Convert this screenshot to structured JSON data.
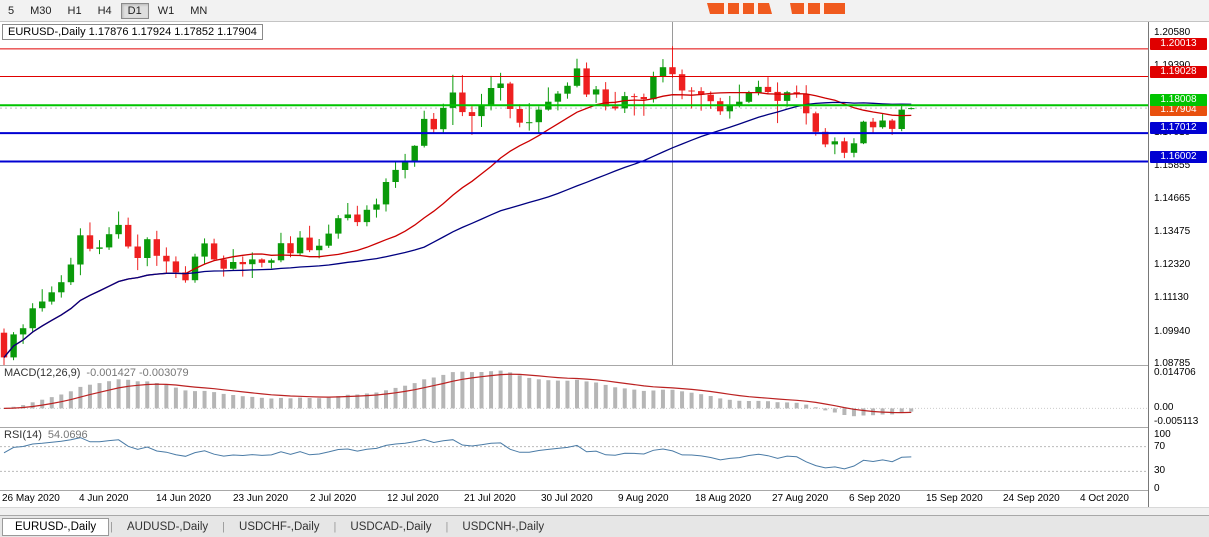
{
  "toolbar": {
    "timeframes": [
      {
        "label": "5",
        "active": false
      },
      {
        "label": "M30",
        "active": false
      },
      {
        "label": "H1",
        "active": false
      },
      {
        "label": "H4",
        "active": false
      },
      {
        "label": "D1",
        "active": true
      },
      {
        "label": "W1",
        "active": false
      },
      {
        "label": "MN",
        "active": false
      }
    ],
    "logo_color": "#f05a1e"
  },
  "chart": {
    "title_text": "EURUSD-,Daily 1.17876 1.17924 1.17852 1.17904"
  },
  "chart_data": {
    "type": "candlestick",
    "symbol": "EURUSD-",
    "timeframe": "Daily",
    "last": {
      "open": 1.17876,
      "high": 1.17924,
      "low": 1.17852,
      "close": 1.17904
    },
    "colors": {
      "up": "#0a9a0a",
      "down": "#ee2020"
    },
    "ohlc": [
      [
        1.099,
        1.1005,
        1.087,
        1.0902
      ],
      [
        1.0902,
        1.0992,
        1.0892,
        1.0984
      ],
      [
        1.0984,
        1.102,
        1.095,
        1.1006
      ],
      [
        1.1006,
        1.1095,
        1.099,
        1.1077
      ],
      [
        1.1077,
        1.1145,
        1.1065,
        1.1101
      ],
      [
        1.1101,
        1.1155,
        1.109,
        1.1134
      ],
      [
        1.1134,
        1.1195,
        1.1115,
        1.117
      ],
      [
        1.117,
        1.1257,
        1.116,
        1.1233
      ],
      [
        1.1233,
        1.1362,
        1.1195,
        1.1337
      ],
      [
        1.1337,
        1.1383,
        1.128,
        1.1289
      ],
      [
        1.1289,
        1.132,
        1.127,
        1.1294
      ],
      [
        1.1294,
        1.1366,
        1.1285,
        1.1341
      ],
      [
        1.1341,
        1.1422,
        1.1325,
        1.1374
      ],
      [
        1.1374,
        1.14,
        1.129,
        1.1297
      ],
      [
        1.1297,
        1.134,
        1.1213,
        1.1256
      ],
      [
        1.1256,
        1.133,
        1.1227,
        1.1323
      ],
      [
        1.1323,
        1.1353,
        1.1228,
        1.1264
      ],
      [
        1.1264,
        1.1294,
        1.1204,
        1.1244
      ],
      [
        1.1244,
        1.1262,
        1.1185,
        1.1205
      ],
      [
        1.1205,
        1.1227,
        1.1168,
        1.1177
      ],
      [
        1.1177,
        1.1271,
        1.1168,
        1.1261
      ],
      [
        1.1261,
        1.1326,
        1.1233,
        1.1308
      ],
      [
        1.1308,
        1.1325,
        1.1248,
        1.1251
      ],
      [
        1.1251,
        1.1265,
        1.119,
        1.1218
      ],
      [
        1.1218,
        1.1288,
        1.1212,
        1.1242
      ],
      [
        1.1242,
        1.1262,
        1.119,
        1.1234
      ],
      [
        1.1234,
        1.1276,
        1.1185,
        1.1251
      ],
      [
        1.1251,
        1.1255,
        1.1223,
        1.1239
      ],
      [
        1.1239,
        1.1254,
        1.1219,
        1.1248
      ],
      [
        1.1248,
        1.1346,
        1.1241,
        1.1309
      ],
      [
        1.1309,
        1.1334,
        1.1259,
        1.1273
      ],
      [
        1.1273,
        1.1352,
        1.1266,
        1.1329
      ],
      [
        1.1329,
        1.1371,
        1.1277,
        1.1284
      ],
      [
        1.1284,
        1.1324,
        1.1255,
        1.13
      ],
      [
        1.13,
        1.1375,
        1.1292,
        1.1343
      ],
      [
        1.1343,
        1.1409,
        1.1325,
        1.1398
      ],
      [
        1.1398,
        1.1452,
        1.139,
        1.1411
      ],
      [
        1.1411,
        1.1442,
        1.137,
        1.1384
      ],
      [
        1.1384,
        1.1444,
        1.1369,
        1.1428
      ],
      [
        1.1428,
        1.1468,
        1.14,
        1.1447
      ],
      [
        1.1447,
        1.154,
        1.1422,
        1.1527
      ],
      [
        1.1527,
        1.1601,
        1.1506,
        1.157
      ],
      [
        1.157,
        1.1627,
        1.154,
        1.1598
      ],
      [
        1.1598,
        1.1658,
        1.1581,
        1.1656
      ],
      [
        1.1656,
        1.1781,
        1.165,
        1.1752
      ],
      [
        1.1752,
        1.1773,
        1.17,
        1.1715
      ],
      [
        1.1715,
        1.1806,
        1.1701,
        1.1791
      ],
      [
        1.1791,
        1.1909,
        1.173,
        1.1846
      ],
      [
        1.1846,
        1.1908,
        1.1762,
        1.1776
      ],
      [
        1.1776,
        1.1797,
        1.1695,
        1.1762
      ],
      [
        1.1762,
        1.1841,
        1.1723,
        1.1803
      ],
      [
        1.1803,
        1.1905,
        1.1782,
        1.1862
      ],
      [
        1.1862,
        1.1916,
        1.1817,
        1.1878
      ],
      [
        1.1878,
        1.1884,
        1.1754,
        1.1787
      ],
      [
        1.1787,
        1.1804,
        1.1722,
        1.1738
      ],
      [
        1.1738,
        1.1808,
        1.171,
        1.174
      ],
      [
        1.174,
        1.1796,
        1.1701,
        1.1785
      ],
      [
        1.1785,
        1.1864,
        1.1781,
        1.1813
      ],
      [
        1.1813,
        1.1851,
        1.1782,
        1.1842
      ],
      [
        1.1842,
        1.1882,
        1.1824,
        1.187
      ],
      [
        1.187,
        1.1966,
        1.1864,
        1.1932
      ],
      [
        1.1932,
        1.1953,
        1.183,
        1.1839
      ],
      [
        1.1839,
        1.1869,
        1.1809,
        1.1857
      ],
      [
        1.1857,
        1.1883,
        1.1782,
        1.1796
      ],
      [
        1.1796,
        1.1848,
        1.1782,
        1.1789
      ],
      [
        1.1789,
        1.1848,
        1.1773,
        1.1833
      ],
      [
        1.1833,
        1.1842,
        1.1764,
        1.183
      ],
      [
        1.183,
        1.1842,
        1.1763,
        1.1822
      ],
      [
        1.1822,
        1.192,
        1.181,
        1.1903
      ],
      [
        1.1903,
        1.1965,
        1.1882,
        1.1936
      ],
      [
        1.1936,
        1.2011,
        1.1898,
        1.1911
      ],
      [
        1.1911,
        1.1928,
        1.1822,
        1.1853
      ],
      [
        1.1853,
        1.1865,
        1.1789,
        1.1851
      ],
      [
        1.1851,
        1.1865,
        1.1781,
        1.1838
      ],
      [
        1.1838,
        1.185,
        1.1788,
        1.1815
      ],
      [
        1.1815,
        1.1827,
        1.1766,
        1.1779
      ],
      [
        1.1779,
        1.1834,
        1.1753,
        1.1802
      ],
      [
        1.1802,
        1.1874,
        1.1793,
        1.1813
      ],
      [
        1.1813,
        1.1852,
        1.1808,
        1.1845
      ],
      [
        1.1845,
        1.1888,
        1.1836,
        1.1866
      ],
      [
        1.1866,
        1.1901,
        1.184,
        1.1848
      ],
      [
        1.1848,
        1.1882,
        1.1737,
        1.1816
      ],
      [
        1.1816,
        1.1852,
        1.1795,
        1.1847
      ],
      [
        1.1847,
        1.1871,
        1.1827,
        1.1839
      ],
      [
        1.1839,
        1.1872,
        1.1732,
        1.1772
      ],
      [
        1.1772,
        1.1778,
        1.1692,
        1.1706
      ],
      [
        1.1706,
        1.1719,
        1.1651,
        1.1661
      ],
      [
        1.1661,
        1.1686,
        1.1626,
        1.1672
      ],
      [
        1.1672,
        1.1685,
        1.1612,
        1.1631
      ],
      [
        1.1631,
        1.1683,
        1.1615,
        1.1665
      ],
      [
        1.1665,
        1.1745,
        1.1662,
        1.1742
      ],
      [
        1.1742,
        1.1755,
        1.17,
        1.1722
      ],
      [
        1.1722,
        1.1769,
        1.1717,
        1.1746
      ],
      [
        1.1746,
        1.1752,
        1.1695,
        1.1716
      ],
      [
        1.1716,
        1.1798,
        1.1708,
        1.1785
      ],
      [
        1.17876,
        1.17924,
        1.17852,
        1.17904
      ]
    ],
    "x_labels": [
      "26 May 2020",
      "4 Jun 2020",
      "14 Jun 2020",
      "23 Jun 2020",
      "2 Jul 2020",
      "12 Jul 2020",
      "21 Jul 2020",
      "30 Jul 2020",
      "9 Aug 2020",
      "18 Aug 2020",
      "27 Aug 2020",
      "6 Sep 2020",
      "15 Sep 2020",
      "24 Sep 2020",
      "4 Oct 2020"
    ],
    "y_ticks": [
      "1.20580",
      "1.19390",
      "1.18200",
      "1.17010",
      "1.15855",
      "1.14665",
      "1.13475",
      "1.12320",
      "1.11130",
      "1.09940",
      "1.08785"
    ],
    "price_lines": [
      {
        "price": 1.20013,
        "color": "#e00000",
        "width": 1,
        "label": "1.20013"
      },
      {
        "price": 1.19028,
        "color": "#e00000",
        "width": 1,
        "label": "1.19028"
      },
      {
        "price": 1.18008,
        "color": "#00c400",
        "width": 2,
        "label": "1.18008"
      },
      {
        "price": 1.17012,
        "color": "#0000d2",
        "width": 2,
        "label": "1.17012"
      },
      {
        "price": 1.16002,
        "color": "#0000d2",
        "width": 2,
        "label": "1.16002"
      }
    ],
    "current_price": {
      "value": 1.17904,
      "label": "1.17904",
      "color": "#e8500e"
    },
    "vline": {
      "index": 70,
      "color": "#9a9a9a"
    },
    "overlays": [
      {
        "type": "ma",
        "period": 20,
        "color": "#cc0000"
      },
      {
        "type": "ma",
        "period": 45,
        "color": "#000080"
      }
    ],
    "indicators": {
      "macd": {
        "name": "MACD(12,26,9)",
        "values_text": "-0.001427 -0.003079",
        "fast": 12,
        "slow": 26,
        "signal": 9,
        "axis_labels": [
          "0.014706",
          "0.00",
          "-0.005113"
        ],
        "hist_color": "#b6b6b6",
        "signal_color": "#bb2222"
      },
      "rsi": {
        "name": "RSI(14)",
        "value_text": "54.0696",
        "period": 14,
        "levels": [
          70,
          30
        ],
        "axis_labels": [
          "100",
          "70",
          "30",
          "0"
        ],
        "line_color": "#4a7ba6"
      }
    }
  },
  "tabs": [
    {
      "label": "EURUSD-,Daily",
      "active": true
    },
    {
      "label": "AUDUSD-,Daily",
      "active": false
    },
    {
      "label": "USDCHF-,Daily",
      "active": false
    },
    {
      "label": "USDCAD-,Daily",
      "active": false
    },
    {
      "label": "USDCNH-,Daily",
      "active": false
    }
  ]
}
